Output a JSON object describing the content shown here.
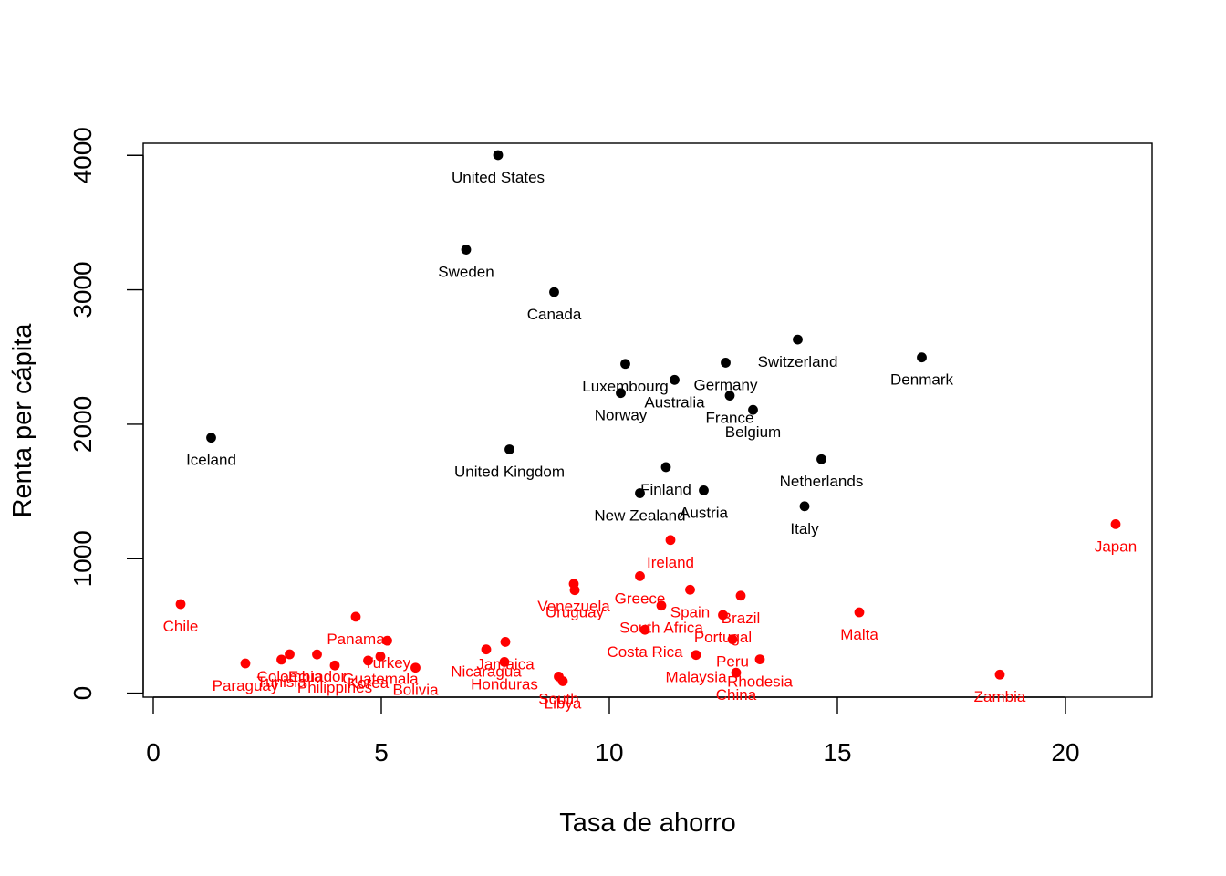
{
  "chart_data": {
    "type": "scatter",
    "title": "",
    "xlabel": "Tasa de ahorro",
    "ylabel": "Renta per cápita",
    "xlim": [
      -0.22,
      21.9
    ],
    "ylim": [
      -30,
      4090
    ],
    "xticks": [
      0,
      5,
      10,
      15,
      20
    ],
    "yticks": [
      0,
      1000,
      2000,
      3000,
      4000
    ],
    "grid": false,
    "legend": "none",
    "series": [
      {
        "color": "#000000",
        "points": [
          {
            "label": "United States",
            "x": 7.56,
            "y": 4002
          },
          {
            "label": "Sweden",
            "x": 6.86,
            "y": 3299
          },
          {
            "label": "Canada",
            "x": 8.79,
            "y": 2983
          },
          {
            "label": "Switzerland",
            "x": 14.13,
            "y": 2630
          },
          {
            "label": "Denmark",
            "x": 16.85,
            "y": 2497
          },
          {
            "label": "Luxembourg",
            "x": 10.35,
            "y": 2449
          },
          {
            "label": "Germany",
            "x": 12.55,
            "y": 2458
          },
          {
            "label": "Australia",
            "x": 11.43,
            "y": 2330
          },
          {
            "label": "Norway",
            "x": 10.25,
            "y": 2232
          },
          {
            "label": "France",
            "x": 12.64,
            "y": 2213
          },
          {
            "label": "Belgium",
            "x": 13.15,
            "y": 2107
          },
          {
            "label": "Iceland",
            "x": 1.27,
            "y": 1900
          },
          {
            "label": "United Kingdom",
            "x": 7.81,
            "y": 1813
          },
          {
            "label": "Netherlands",
            "x": 14.65,
            "y": 1740
          },
          {
            "label": "Finland",
            "x": 11.24,
            "y": 1681
          },
          {
            "label": "Austria",
            "x": 12.07,
            "y": 1508
          },
          {
            "label": "New Zealand",
            "x": 10.67,
            "y": 1487
          },
          {
            "label": "Italy",
            "x": 14.28,
            "y": 1390
          }
        ]
      },
      {
        "color": "#ff0000",
        "points": [
          {
            "label": "Japan",
            "x": 21.1,
            "y": 1257
          },
          {
            "label": "Ireland",
            "x": 11.34,
            "y": 1139
          },
          {
            "label": "Greece",
            "x": 10.67,
            "y": 870
          },
          {
            "label": "Venezuela",
            "x": 9.22,
            "y": 813
          },
          {
            "label": "Uruguay",
            "x": 9.24,
            "y": 766
          },
          {
            "label": "Spain",
            "x": 11.77,
            "y": 769
          },
          {
            "label": "Brazil",
            "x": 12.88,
            "y": 725
          },
          {
            "label": "Chile",
            "x": 0.6,
            "y": 662
          },
          {
            "label": "South Africa",
            "x": 11.14,
            "y": 651
          },
          {
            "label": "Malta",
            "x": 15.48,
            "y": 601
          },
          {
            "label": "Portugal",
            "x": 12.49,
            "y": 581
          },
          {
            "label": "Panama",
            "x": 4.44,
            "y": 568
          },
          {
            "label": "Costa Rica",
            "x": 10.78,
            "y": 471
          },
          {
            "label": "Peru",
            "x": 12.7,
            "y": 400
          },
          {
            "label": "Turkey",
            "x": 5.13,
            "y": 390
          },
          {
            "label": "Jamaica",
            "x": 7.72,
            "y": 381
          },
          {
            "label": "Nicaragua",
            "x": 7.3,
            "y": 325
          },
          {
            "label": "Colombia",
            "x": 2.99,
            "y": 289
          },
          {
            "label": "Ecuador",
            "x": 3.59,
            "y": 288
          },
          {
            "label": "Malaysia",
            "x": 11.9,
            "y": 284
          },
          {
            "label": "Guatemala",
            "x": 4.98,
            "y": 273
          },
          {
            "label": "Tunisia",
            "x": 2.81,
            "y": 249
          },
          {
            "label": "Rhodesia",
            "x": 13.3,
            "y": 251
          },
          {
            "label": "Korea",
            "x": 4.71,
            "y": 242
          },
          {
            "label": "Honduras",
            "x": 7.7,
            "y": 232
          },
          {
            "label": "Paraguay",
            "x": 2.02,
            "y": 221
          },
          {
            "label": "Philippines",
            "x": 3.98,
            "y": 206
          },
          {
            "label": "Bolivia",
            "x": 5.75,
            "y": 189
          },
          {
            "label": "China",
            "x": 12.78,
            "y": 152
          },
          {
            "label": "Zambia",
            "x": 18.56,
            "y": 138
          },
          {
            "label": "South",
            "x": 8.89,
            "y": 123
          },
          {
            "label": "Libya",
            "x": 8.98,
            "y": 89
          }
        ]
      }
    ]
  }
}
